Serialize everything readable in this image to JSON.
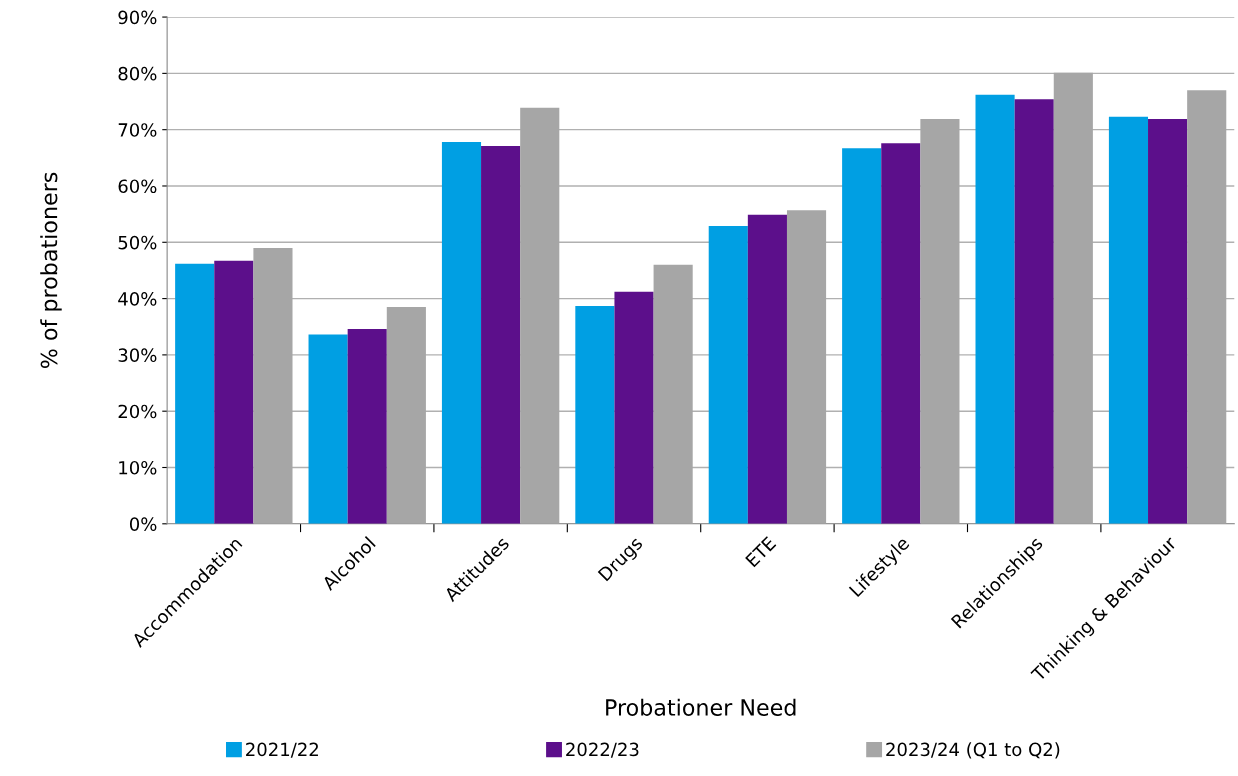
{
  "chart_data": {
    "type": "bar",
    "xlabel": "Probationer Need",
    "ylabel": "% of probationers",
    "categories": [
      "Accommodation",
      "Alcohol",
      "Attitudes",
      "Drugs",
      "ETE",
      "Lifestyle",
      "Relationships",
      "Thinking & Behaviour"
    ],
    "series": [
      {
        "name": "2021/22",
        "color": "#009fe3",
        "values": [
          46.2,
          33.6,
          67.8,
          38.7,
          52.9,
          66.7,
          76.2,
          72.3
        ]
      },
      {
        "name": "2022/23",
        "color": "#5c0f8b",
        "values": [
          46.7,
          34.6,
          67.1,
          41.2,
          54.9,
          67.6,
          75.4,
          71.9
        ]
      },
      {
        "name": "2023/24 (Q1 to Q2)",
        "color": "#a6a6a6",
        "values": [
          49.0,
          38.5,
          73.9,
          46.0,
          55.7,
          71.9,
          80.1,
          77.0
        ]
      }
    ],
    "ylim": [
      0,
      90
    ],
    "yticks": [
      {
        "value": 0,
        "label": "0%"
      },
      {
        "value": 10,
        "label": "10%"
      },
      {
        "value": 20,
        "label": "20%"
      },
      {
        "value": 30,
        "label": "30%"
      },
      {
        "value": 40,
        "label": "40%"
      },
      {
        "value": 50,
        "label": "50%"
      },
      {
        "value": 60,
        "label": "60%"
      },
      {
        "value": 70,
        "label": "70%"
      },
      {
        "value": 80,
        "label": "80%"
      },
      {
        "value": 90,
        "label": "90%"
      }
    ],
    "grid": "y",
    "legend": "bottom"
  }
}
